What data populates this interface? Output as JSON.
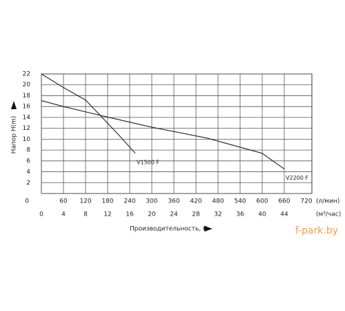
{
  "chart_data": {
    "type": "line",
    "y_label": "Напор H(m)",
    "x_label": "Производительность, Q",
    "x_unit": "(м³/час)",
    "x2_unit": "(л/мин)",
    "watermark": "f-park.by",
    "xlim": [
      0,
      49
    ],
    "xticks": [
      0,
      4,
      8,
      12,
      16,
      20,
      24,
      28,
      32,
      36,
      40,
      44
    ],
    "x2lim": [
      0,
      735
    ],
    "x2ticks": [
      60,
      120,
      180,
      240,
      300,
      360,
      420,
      480,
      540,
      600,
      660,
      720
    ],
    "ylim": [
      0,
      22
    ],
    "yticks": [
      0,
      2,
      4,
      6,
      8,
      10,
      12,
      14,
      16,
      18,
      20,
      22
    ],
    "grid": true,
    "series": [
      {
        "name": "V1500 F",
        "color": "#222222",
        "x": [
          0,
          4,
          8,
          11,
          14,
          17
        ],
        "values": [
          22,
          19.5,
          17.2,
          14,
          10.8,
          7.4
        ]
      },
      {
        "name": "V2200 F",
        "color": "#222222",
        "x": [
          0,
          4,
          11,
          20,
          30,
          40,
          44
        ],
        "values": [
          17.1,
          16,
          14.3,
          12.2,
          10.2,
          7.4,
          4.5
        ]
      }
    ]
  }
}
